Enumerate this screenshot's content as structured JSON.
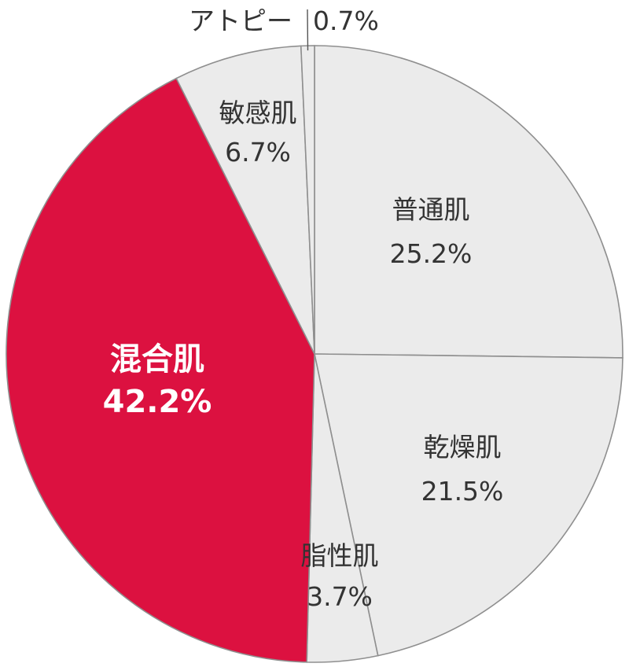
{
  "chart_data": {
    "type": "pie",
    "slices": [
      {
        "key": "normal",
        "label": "普通肌",
        "value": 25.2,
        "value_label": "25.2%",
        "color": "#ebebeb"
      },
      {
        "key": "dry",
        "label": "乾燥肌",
        "value": 21.5,
        "value_label": "21.5%",
        "color": "#ebebeb"
      },
      {
        "key": "oily",
        "label": "脂性肌",
        "value": 3.7,
        "value_label": "3.7%",
        "color": "#ebebeb"
      },
      {
        "key": "combination",
        "label": "混合肌",
        "value": 42.2,
        "value_label": "42.2%",
        "color": "#dc1140",
        "highlight": true
      },
      {
        "key": "sensitive",
        "label": "敏感肌",
        "value": 6.7,
        "value_label": "6.7%",
        "color": "#ebebeb"
      },
      {
        "key": "atopy",
        "label": "アトピー",
        "value": 0.7,
        "value_label": "0.7%",
        "color": "#ebebeb"
      }
    ],
    "start": "12 o'clock",
    "direction": "clockwise",
    "label_color": "#333333",
    "highlight_label_color": "#ffffff",
    "border_color": "#8f8f8f"
  }
}
